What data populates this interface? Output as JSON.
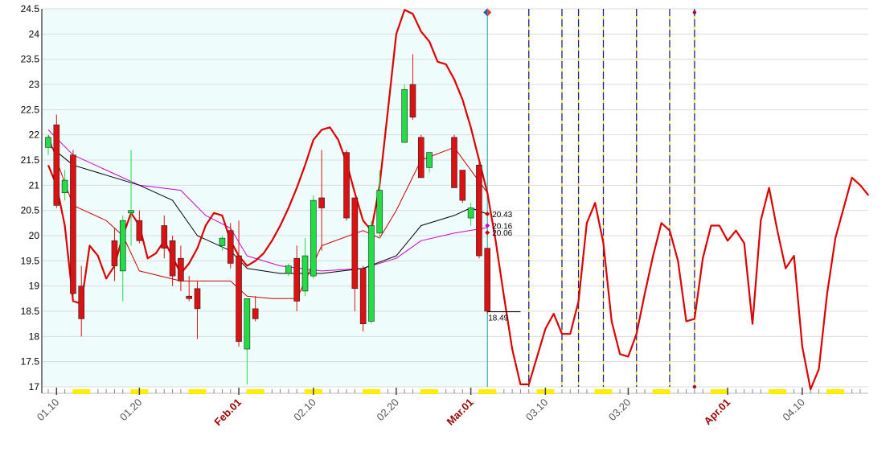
{
  "chart_data": {
    "type": "candlestick",
    "title": "",
    "xlabel": "",
    "ylabel": "",
    "ylim": [
      17.0,
      24.5
    ],
    "y_ticks": [
      "17",
      "17.5",
      "18",
      "18.5",
      "19",
      "19.5",
      "20",
      "20.5",
      "21",
      "21.5",
      "22",
      "22.5",
      "23",
      "23.5",
      "24",
      "24.5"
    ],
    "y_tick_values": [
      17,
      17.5,
      18,
      18.5,
      19,
      19.5,
      20,
      20.5,
      21,
      21.5,
      22,
      22.5,
      23,
      23.5,
      24,
      24.5
    ],
    "x_range": [
      "2001-01-09",
      "2001-04-17"
    ],
    "x_ticks": [
      {
        "date": "2001-01-10",
        "label": "01.10",
        "major": false
      },
      {
        "date": "2001-01-20",
        "label": "01.20",
        "major": false
      },
      {
        "date": "2001-02-01",
        "label": "Feb.01",
        "major": true
      },
      {
        "date": "2001-02-10",
        "label": "02.10",
        "major": false
      },
      {
        "date": "2001-02-20",
        "label": "02.20",
        "major": false
      },
      {
        "date": "2001-03-01",
        "label": "Mar.01",
        "major": true
      },
      {
        "date": "2001-03-10",
        "label": "03.10",
        "major": false
      },
      {
        "date": "2001-03-20",
        "label": "03.20",
        "major": false
      },
      {
        "date": "2001-04-01",
        "label": "Apr.01",
        "major": true
      },
      {
        "date": "2001-04-10",
        "label": "04.10",
        "major": false
      }
    ],
    "weekend_marks": [
      "2001-01-13",
      "2001-01-20",
      "2001-01-27",
      "2001-02-03",
      "2001-02-10",
      "2001-02-17",
      "2001-02-24",
      "2001-03-03",
      "2001-03-10",
      "2001-03-17",
      "2001-03-24",
      "2001-03-31",
      "2001-04-07",
      "2001-04-14"
    ],
    "history_region": {
      "start": "2001-01-09",
      "end": "2001-03-03",
      "color": "#eefcfc"
    },
    "candles": [
      {
        "date": "2001-01-09",
        "open": 21.75,
        "high": 22.0,
        "low": 21.6,
        "close": 21.95
      },
      {
        "date": "2001-01-10",
        "open": 22.2,
        "high": 22.4,
        "low": 20.55,
        "close": 20.6
      },
      {
        "date": "2001-01-11",
        "open": 20.85,
        "high": 21.3,
        "low": 20.7,
        "close": 21.1
      },
      {
        "date": "2001-01-12",
        "open": 21.6,
        "high": 21.7,
        "low": 18.7,
        "close": 18.85
      },
      {
        "date": "2001-01-13",
        "open": 19.0,
        "high": 19.4,
        "low": 18.0,
        "close": 18.35
      },
      {
        "date": "2001-01-17",
        "open": 19.9,
        "high": 20.15,
        "low": 19.1,
        "close": 19.4
      },
      {
        "date": "2001-01-18",
        "open": 19.3,
        "high": 20.4,
        "low": 18.7,
        "close": 20.3
      },
      {
        "date": "2001-01-19",
        "open": 20.45,
        "high": 21.7,
        "low": 19.8,
        "close": 20.5
      },
      {
        "date": "2001-01-20",
        "open": 20.3,
        "high": 20.5,
        "low": 19.85,
        "close": 19.9
      },
      {
        "date": "2001-01-23",
        "open": 20.2,
        "high": 20.4,
        "low": 19.55,
        "close": 19.75
      },
      {
        "date": "2001-01-24",
        "open": 19.9,
        "high": 20.0,
        "low": 19.0,
        "close": 19.2
      },
      {
        "date": "2001-01-25",
        "open": 19.55,
        "high": 19.8,
        "low": 18.9,
        "close": 19.1
      },
      {
        "date": "2001-01-26",
        "open": 18.8,
        "high": 19.2,
        "low": 18.7,
        "close": 18.75
      },
      {
        "date": "2001-01-27",
        "open": 18.95,
        "high": 19.1,
        "low": 17.95,
        "close": 18.55
      },
      {
        "date": "2001-01-30",
        "open": 19.8,
        "high": 20.0,
        "low": 19.7,
        "close": 19.95
      },
      {
        "date": "2001-01-31",
        "open": 20.1,
        "high": 20.25,
        "low": 19.35,
        "close": 19.45
      },
      {
        "date": "2001-02-01",
        "open": 19.6,
        "high": 20.3,
        "low": 17.8,
        "close": 17.9
      },
      {
        "date": "2001-02-02",
        "open": 17.75,
        "high": 18.75,
        "low": 17.05,
        "close": 18.75
      },
      {
        "date": "2001-02-03",
        "open": 18.55,
        "high": 18.8,
        "low": 18.3,
        "close": 18.35
      },
      {
        "date": "2001-02-07",
        "open": 19.25,
        "high": 19.45,
        "low": 19.2,
        "close": 19.4
      },
      {
        "date": "2001-02-08",
        "open": 19.55,
        "high": 19.8,
        "low": 18.5,
        "close": 18.7
      },
      {
        "date": "2001-02-09",
        "open": 18.9,
        "high": 19.95,
        "low": 18.8,
        "close": 19.6
      },
      {
        "date": "2001-02-10",
        "open": 19.2,
        "high": 20.8,
        "low": 19.15,
        "close": 20.7
      },
      {
        "date": "2001-02-11",
        "open": 20.75,
        "high": 21.7,
        "low": 19.7,
        "close": 20.55
      },
      {
        "date": "2001-02-14",
        "open": 21.65,
        "high": 21.7,
        "low": 20.3,
        "close": 20.35
      },
      {
        "date": "2001-02-15",
        "open": 20.75,
        "high": 20.75,
        "low": 18.5,
        "close": 18.95
      },
      {
        "date": "2001-02-16",
        "open": 19.35,
        "high": 19.4,
        "low": 18.1,
        "close": 18.25
      },
      {
        "date": "2001-02-17",
        "open": 18.3,
        "high": 20.3,
        "low": 18.25,
        "close": 20.2
      },
      {
        "date": "2001-02-18",
        "open": 20.05,
        "high": 21.3,
        "low": 19.95,
        "close": 20.9
      },
      {
        "date": "2001-02-21",
        "open": 21.85,
        "high": 23.0,
        "low": 21.85,
        "close": 22.9
      },
      {
        "date": "2001-02-22",
        "open": 23.0,
        "high": 23.6,
        "low": 22.3,
        "close": 22.35
      },
      {
        "date": "2001-02-23",
        "open": 21.95,
        "high": 22.0,
        "low": 21.15,
        "close": 21.15
      },
      {
        "date": "2001-02-24",
        "open": 21.35,
        "high": 21.65,
        "low": 21.25,
        "close": 21.65
      },
      {
        "date": "2001-02-27",
        "open": 21.95,
        "high": 22.0,
        "low": 20.95,
        "close": 20.95
      },
      {
        "date": "2001-02-28",
        "open": 21.3,
        "high": 21.3,
        "low": 20.65,
        "close": 20.7
      },
      {
        "date": "2001-03-01",
        "open": 20.35,
        "high": 20.65,
        "low": 20.2,
        "close": 20.55
      },
      {
        "date": "2001-03-02",
        "open": 21.4,
        "high": 21.45,
        "low": 19.55,
        "close": 19.6
      },
      {
        "date": "2001-03-03",
        "open": 19.75,
        "high": 19.75,
        "low": 18.45,
        "close": 18.5
      }
    ],
    "series": [
      {
        "name": "",
        "color": "#dd0000",
        "width": 2.2,
        "points": [
          [
            "2001-01-09",
            21.4
          ],
          [
            "2001-01-10",
            21.0
          ],
          [
            "2001-01-11",
            20.2
          ],
          [
            "2001-01-12",
            18.7
          ],
          [
            "2001-01-13",
            18.65
          ],
          [
            "2001-01-14",
            19.8
          ],
          [
            "2001-01-15",
            19.6
          ],
          [
            "2001-01-16",
            19.15
          ],
          [
            "2001-01-17",
            19.4
          ],
          [
            "2001-01-18",
            20.0
          ],
          [
            "2001-01-19",
            20.45
          ],
          [
            "2001-01-20",
            20.2
          ],
          [
            "2001-01-21",
            19.55
          ],
          [
            "2001-01-22",
            19.65
          ],
          [
            "2001-01-23",
            19.9
          ],
          [
            "2001-01-25",
            19.25
          ],
          [
            "2001-01-26",
            19.45
          ],
          [
            "2001-01-27",
            19.75
          ],
          [
            "2001-01-28",
            20.2
          ],
          [
            "2001-01-29",
            20.45
          ],
          [
            "2001-01-30",
            20.4
          ],
          [
            "2001-01-31",
            19.9
          ],
          [
            "2001-02-01",
            19.6
          ],
          [
            "2001-02-02",
            19.4
          ],
          [
            "2001-02-03",
            19.5
          ],
          [
            "2001-02-04",
            19.65
          ],
          [
            "2001-02-05",
            19.9
          ],
          [
            "2001-02-06",
            20.2
          ],
          [
            "2001-02-07",
            20.55
          ],
          [
            "2001-02-08",
            20.95
          ],
          [
            "2001-02-09",
            21.4
          ],
          [
            "2001-02-10",
            21.9
          ],
          [
            "2001-02-11",
            22.1
          ],
          [
            "2001-02-12",
            22.15
          ],
          [
            "2001-02-13",
            21.9
          ],
          [
            "2001-02-14",
            21.45
          ],
          [
            "2001-02-15",
            20.85
          ],
          [
            "2001-02-16",
            20.3
          ],
          [
            "2001-02-17",
            20.1
          ],
          [
            "2001-02-18",
            21.0
          ],
          [
            "2001-02-19",
            22.5
          ],
          [
            "2001-02-20",
            24.0
          ],
          [
            "2001-02-21",
            24.48
          ],
          [
            "2001-02-22",
            24.4
          ],
          [
            "2001-02-23",
            24.05
          ],
          [
            "2001-02-24",
            23.85
          ],
          [
            "2001-02-25",
            23.45
          ],
          [
            "2001-02-26",
            23.4
          ],
          [
            "2001-02-27",
            23.1
          ],
          [
            "2001-02-28",
            22.7
          ],
          [
            "2001-03-01",
            22.15
          ],
          [
            "2001-03-02",
            21.5
          ],
          [
            "2001-03-03",
            20.85
          ],
          [
            "2001-03-04",
            19.9
          ],
          [
            "2001-03-05",
            18.8
          ],
          [
            "2001-03-06",
            17.75
          ],
          [
            "2001-03-07",
            17.05
          ],
          [
            "2001-03-08",
            17.05
          ],
          [
            "2001-03-09",
            17.6
          ],
          [
            "2001-03-10",
            18.15
          ],
          [
            "2001-03-11",
            18.45
          ],
          [
            "2001-03-12",
            18.05
          ],
          [
            "2001-03-13",
            18.05
          ],
          [
            "2001-03-14",
            18.7
          ],
          [
            "2001-03-15",
            20.25
          ],
          [
            "2001-03-16",
            20.65
          ],
          [
            "2001-03-17",
            19.85
          ],
          [
            "2001-03-18",
            18.3
          ],
          [
            "2001-03-19",
            17.65
          ],
          [
            "2001-03-20",
            17.6
          ],
          [
            "2001-03-21",
            18.05
          ],
          [
            "2001-03-22",
            18.85
          ],
          [
            "2001-03-23",
            19.6
          ],
          [
            "2001-03-24",
            20.25
          ],
          [
            "2001-03-25",
            20.1
          ],
          [
            "2001-03-26",
            19.5
          ],
          [
            "2001-03-27",
            18.3
          ],
          [
            "2001-03-28",
            18.35
          ],
          [
            "2001-03-29",
            19.55
          ],
          [
            "2001-03-30",
            20.2
          ],
          [
            "2001-03-31",
            20.2
          ],
          [
            "2001-04-01",
            19.9
          ],
          [
            "2001-04-02",
            20.1
          ],
          [
            "2001-04-03",
            19.85
          ],
          [
            "2001-04-04",
            18.25
          ],
          [
            "2001-04-05",
            20.3
          ],
          [
            "2001-04-06",
            20.95
          ],
          [
            "2001-04-07",
            20.1
          ],
          [
            "2001-04-08",
            19.35
          ],
          [
            "2001-04-09",
            19.6
          ],
          [
            "2001-04-10",
            17.8
          ],
          [
            "2001-04-11",
            16.95
          ],
          [
            "2001-04-12",
            17.35
          ],
          [
            "2001-04-13",
            18.85
          ],
          [
            "2001-04-14",
            19.95
          ],
          [
            "2001-04-15",
            20.55
          ],
          [
            "2001-04-16",
            21.15
          ],
          [
            "2001-04-17",
            21.0
          ],
          [
            "2001-04-18",
            20.8
          ]
        ]
      },
      {
        "name": "",
        "color": "#cc0000",
        "width": 1,
        "points": [
          [
            "2001-01-09",
            22.0
          ],
          [
            "2001-01-10",
            21.5
          ],
          [
            "2001-01-12",
            20.6
          ],
          [
            "2001-01-16",
            20.3
          ],
          [
            "2001-01-18",
            20.0
          ],
          [
            "2001-01-20",
            19.3
          ],
          [
            "2001-01-25",
            19.1
          ],
          [
            "2001-01-31",
            19.1
          ],
          [
            "2001-02-02",
            18.8
          ],
          [
            "2001-02-05",
            18.75
          ],
          [
            "2001-02-08",
            18.75
          ],
          [
            "2001-02-11",
            19.8
          ],
          [
            "2001-02-16",
            20.1
          ],
          [
            "2001-02-18",
            19.95
          ],
          [
            "2001-02-20",
            20.5
          ],
          [
            "2001-02-23",
            21.5
          ],
          [
            "2001-02-27",
            21.75
          ],
          [
            "2001-03-03",
            20.85
          ]
        ]
      },
      {
        "name": "",
        "color": "#000000",
        "width": 1,
        "points": [
          [
            "2001-01-09",
            21.8
          ],
          [
            "2001-01-12",
            21.4
          ],
          [
            "2001-01-16",
            21.2
          ],
          [
            "2001-01-20",
            21.0
          ],
          [
            "2001-01-24",
            20.7
          ],
          [
            "2001-01-27",
            20.0
          ],
          [
            "2001-01-31",
            19.7
          ],
          [
            "2001-02-02",
            19.35
          ],
          [
            "2001-02-06",
            19.25
          ],
          [
            "2001-02-11",
            19.25
          ],
          [
            "2001-02-16",
            19.35
          ],
          [
            "2001-02-20",
            19.6
          ],
          [
            "2001-02-23",
            20.2
          ],
          [
            "2001-02-27",
            20.4
          ],
          [
            "2001-03-01",
            20.55
          ],
          [
            "2001-03-03",
            20.43
          ]
        ]
      },
      {
        "name": "",
        "color": "#cc00cc",
        "width": 1,
        "points": [
          [
            "2001-01-09",
            22.1
          ],
          [
            "2001-01-12",
            21.6
          ],
          [
            "2001-01-16",
            21.3
          ],
          [
            "2001-01-20",
            21.0
          ],
          [
            "2001-01-25",
            20.9
          ],
          [
            "2001-01-28",
            20.4
          ],
          [
            "2001-01-31",
            20.15
          ],
          [
            "2001-02-02",
            19.6
          ],
          [
            "2001-02-06",
            19.4
          ],
          [
            "2001-02-11",
            19.3
          ],
          [
            "2001-02-16",
            19.35
          ],
          [
            "2001-02-20",
            19.55
          ],
          [
            "2001-02-23",
            19.9
          ],
          [
            "2001-02-27",
            20.05
          ],
          [
            "2001-03-03",
            20.16
          ]
        ]
      }
    ],
    "vertical_markers": [
      "2001-03-08",
      "2001-03-12",
      "2001-03-14",
      "2001-03-17",
      "2001-03-21",
      "2001-03-25",
      "2001-03-28"
    ],
    "cursor_line": {
      "date": "2001-03-03",
      "color": "#20a0a0"
    },
    "top_markers": [
      {
        "date": "2001-03-03",
        "y": 24.43,
        "shape": "diamond"
      },
      {
        "date": "2001-03-28",
        "y": 24.43,
        "shape": "dot"
      },
      {
        "date": "2001-03-28",
        "y": 17.0,
        "shape": "dot"
      }
    ],
    "annotations": [
      {
        "text": "20.43",
        "date": "2001-03-03",
        "y": 20.43,
        "marker": "#cc0000"
      },
      {
        "text": "20.16",
        "date": "2001-03-03",
        "y": 20.2,
        "marker": "#cc00cc"
      },
      {
        "text": "20.06",
        "date": "2001-03-03",
        "y": 20.06,
        "marker": "#cc0000"
      },
      {
        "text": "18.49",
        "date": "2001-03-03",
        "y": 18.49,
        "marker": ""
      }
    ],
    "last_close_line": {
      "y": 18.49,
      "from": "2001-03-03",
      "to": "2001-03-07"
    },
    "colors": {
      "up_candle": "#22dd44",
      "down_candle": "#dd1111",
      "grid": "#dcdcdc",
      "tick_label": "#000000",
      "major_tick_label": "#990000",
      "minor_tick_label": "#555555",
      "weekend_mark": "#ffee00"
    },
    "grid": true,
    "legend": "none"
  }
}
